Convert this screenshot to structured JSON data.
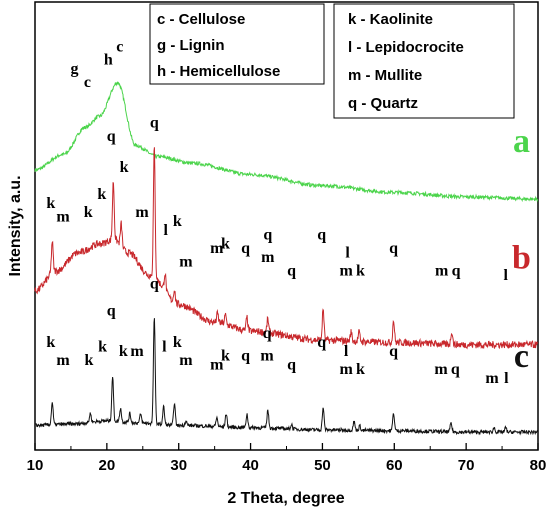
{
  "chart_data": {
    "type": "line",
    "xlabel": "2 Theta, degree",
    "ylabel": "Intensity, a.u.",
    "xlim": [
      10,
      80
    ],
    "xticks": [
      10,
      20,
      30,
      40,
      50,
      60,
      70,
      80
    ],
    "legend_boxes": [
      [
        "c - Cellulose",
        "g - Lignin",
        "h - Hemicellulose"
      ],
      [
        "k - Kaolinite",
        "l - Lepidocrocite",
        "m - Mullite",
        "q - Quartz"
      ]
    ],
    "series": [
      {
        "name": "a",
        "color": "#4CD44C",
        "baseline": [
          [
            10,
            0.625
          ],
          [
            14,
            0.66
          ],
          [
            17,
            0.72
          ],
          [
            19,
            0.745
          ],
          [
            21.5,
            0.82
          ],
          [
            24,
            0.68
          ],
          [
            27,
            0.655
          ],
          [
            32,
            0.64
          ],
          [
            40,
            0.615
          ],
          [
            50,
            0.59
          ],
          [
            60,
            0.575
          ],
          [
            70,
            0.565
          ],
          [
            80,
            0.56
          ]
        ],
        "peaks": [],
        "labels": [
          {
            "t": "g",
            "x": 15.5,
            "y": 0.84
          },
          {
            "t": "c",
            "x": 17.3,
            "y": 0.81
          },
          {
            "t": "h",
            "x": 20.2,
            "y": 0.86
          },
          {
            "t": "c",
            "x": 21.8,
            "y": 0.89
          }
        ]
      },
      {
        "name": "b",
        "color": "#C8282C",
        "baseline": [
          [
            10,
            0.355
          ],
          [
            13,
            0.4
          ],
          [
            16,
            0.44
          ],
          [
            19,
            0.46
          ],
          [
            21,
            0.47
          ],
          [
            23,
            0.44
          ],
          [
            26,
            0.39
          ],
          [
            30,
            0.325
          ],
          [
            35,
            0.285
          ],
          [
            40,
            0.265
          ],
          [
            50,
            0.245
          ],
          [
            60,
            0.24
          ],
          [
            70,
            0.235
          ],
          [
            80,
            0.235
          ]
        ],
        "peaks": [
          [
            12.4,
            0.07
          ],
          [
            20.9,
            0.13
          ],
          [
            22.0,
            0.05
          ],
          [
            26.6,
            0.29
          ],
          [
            28.1,
            0.04
          ],
          [
            29.4,
            0.03
          ],
          [
            35.4,
            0.02
          ],
          [
            36.5,
            0.02
          ],
          [
            39.5,
            0.03
          ],
          [
            42.4,
            0.03
          ],
          [
            50.1,
            0.07
          ],
          [
            54.0,
            0.02
          ],
          [
            55.1,
            0.02
          ],
          [
            59.9,
            0.05
          ],
          [
            68.0,
            0.03
          ]
        ],
        "labels": [
          {
            "t": "k",
            "x": 12.2,
            "y": 0.54
          },
          {
            "t": "m",
            "x": 13.9,
            "y": 0.51
          },
          {
            "t": "k",
            "x": 17.4,
            "y": 0.52
          },
          {
            "t": "k",
            "x": 19.3,
            "y": 0.56
          },
          {
            "t": "q",
            "x": 20.6,
            "y": 0.69
          },
          {
            "t": "k",
            "x": 22.4,
            "y": 0.62
          },
          {
            "t": "m",
            "x": 24.9,
            "y": 0.52
          },
          {
            "t": "q",
            "x": 26.6,
            "y": 0.72
          },
          {
            "t": "l",
            "x": 28.2,
            "y": 0.48
          },
          {
            "t": "k",
            "x": 29.8,
            "y": 0.5
          },
          {
            "t": "m",
            "x": 31.0,
            "y": 0.41
          },
          {
            "t": "m",
            "x": 35.3,
            "y": 0.44
          },
          {
            "t": "k",
            "x": 36.5,
            "y": 0.45
          },
          {
            "t": "q",
            "x": 39.3,
            "y": 0.44
          },
          {
            "t": "q",
            "x": 42.4,
            "y": 0.47
          },
          {
            "t": "m",
            "x": 42.4,
            "y": 0.42
          },
          {
            "t": "q",
            "x": 45.7,
            "y": 0.39
          },
          {
            "t": "q",
            "x": 49.9,
            "y": 0.47
          },
          {
            "t": "l",
            "x": 53.5,
            "y": 0.43
          },
          {
            "t": "m",
            "x": 53.3,
            "y": 0.39
          },
          {
            "t": "k",
            "x": 55.3,
            "y": 0.39
          },
          {
            "t": "q",
            "x": 59.9,
            "y": 0.44
          },
          {
            "t": "m",
            "x": 66.6,
            "y": 0.39
          },
          {
            "t": "q",
            "x": 68.6,
            "y": 0.39
          },
          {
            "t": "l",
            "x": 75.5,
            "y": 0.38
          }
        ]
      },
      {
        "name": "c",
        "color": "#111111",
        "baseline": [
          [
            10,
            0.055
          ],
          [
            15,
            0.058
          ],
          [
            20,
            0.065
          ],
          [
            25,
            0.06
          ],
          [
            30,
            0.055
          ],
          [
            40,
            0.05
          ],
          [
            50,
            0.045
          ],
          [
            60,
            0.043
          ],
          [
            70,
            0.04
          ],
          [
            80,
            0.04
          ]
        ],
        "peaks": [
          [
            12.4,
            0.05
          ],
          [
            17.7,
            0.02
          ],
          [
            20.8,
            0.1
          ],
          [
            21.9,
            0.03
          ],
          [
            23.2,
            0.02
          ],
          [
            24.7,
            0.02
          ],
          [
            26.6,
            0.24
          ],
          [
            27.9,
            0.04
          ],
          [
            29.4,
            0.05
          ],
          [
            31.0,
            0.01
          ],
          [
            35.3,
            0.02
          ],
          [
            36.6,
            0.03
          ],
          [
            39.5,
            0.03
          ],
          [
            42.4,
            0.04
          ],
          [
            45.7,
            0.01
          ],
          [
            50.1,
            0.05
          ],
          [
            54.4,
            0.02
          ],
          [
            55.2,
            0.01
          ],
          [
            59.9,
            0.04
          ],
          [
            67.9,
            0.02
          ],
          [
            73.9,
            0.01
          ],
          [
            75.5,
            0.01
          ]
        ],
        "labels": [
          {
            "t": "k",
            "x": 12.2,
            "y": 0.23
          },
          {
            "t": "m",
            "x": 13.9,
            "y": 0.19
          },
          {
            "t": "k",
            "x": 17.5,
            "y": 0.19
          },
          {
            "t": "k",
            "x": 19.4,
            "y": 0.22
          },
          {
            "t": "q",
            "x": 20.6,
            "y": 0.3
          },
          {
            "t": "k",
            "x": 22.3,
            "y": 0.21
          },
          {
            "t": "m",
            "x": 24.2,
            "y": 0.21
          },
          {
            "t": "q",
            "x": 26.6,
            "y": 0.36
          },
          {
            "t": "l",
            "x": 28.0,
            "y": 0.22
          },
          {
            "t": "k",
            "x": 29.8,
            "y": 0.23
          },
          {
            "t": "m",
            "x": 31.0,
            "y": 0.19
          },
          {
            "t": "m",
            "x": 35.3,
            "y": 0.18
          },
          {
            "t": "k",
            "x": 36.5,
            "y": 0.2
          },
          {
            "t": "q",
            "x": 39.3,
            "y": 0.2
          },
          {
            "t": "q",
            "x": 42.3,
            "y": 0.25
          },
          {
            "t": "m",
            "x": 42.3,
            "y": 0.2
          },
          {
            "t": "q",
            "x": 45.7,
            "y": 0.18
          },
          {
            "t": "q",
            "x": 49.9,
            "y": 0.23
          },
          {
            "t": "l",
            "x": 53.3,
            "y": 0.21
          },
          {
            "t": "m",
            "x": 53.3,
            "y": 0.17
          },
          {
            "t": "k",
            "x": 55.3,
            "y": 0.17
          },
          {
            "t": "q",
            "x": 59.9,
            "y": 0.21
          },
          {
            "t": "m",
            "x": 66.5,
            "y": 0.17
          },
          {
            "t": "q",
            "x": 68.5,
            "y": 0.17
          },
          {
            "t": "m",
            "x": 73.6,
            "y": 0.15
          },
          {
            "t": "l",
            "x": 75.6,
            "y": 0.15
          }
        ]
      }
    ]
  }
}
